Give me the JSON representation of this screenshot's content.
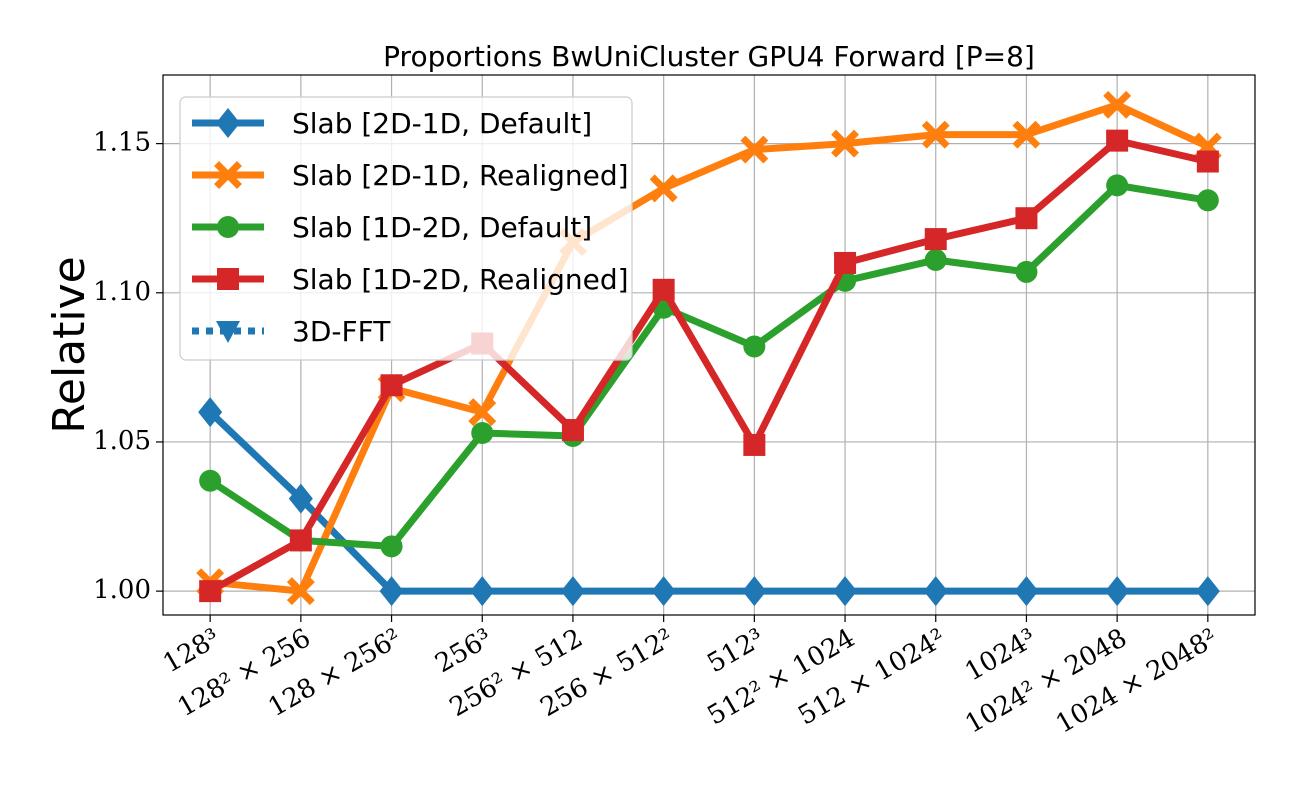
{
  "chart_data": {
    "type": "line",
    "title": "Proportions BwUniCluster GPU4 Forward [P=8]",
    "y_label": "Relative",
    "categories": [
      "128³",
      "128² × 256",
      "128 × 256²",
      "256³",
      "256² × 512",
      "256 × 512²",
      "512³",
      "512² × 1024",
      "512 × 1024²",
      "1024³",
      "1024² × 2048",
      "1024 × 2048²"
    ],
    "series": [
      {
        "name": "Slab [2D-1D, Default]",
        "color": "#1f77b4",
        "marker": "diamond",
        "linestyle": "solid",
        "values": [
          1.06,
          1.031,
          1.0,
          1.0,
          1.0,
          1.0,
          1.0,
          1.0,
          1.0,
          1.0,
          1.0,
          1.0
        ]
      },
      {
        "name": "Slab [2D-1D, Realigned]",
        "color": "#ff7f0e",
        "marker": "x",
        "linestyle": "solid",
        "values": [
          1.003,
          1.0,
          1.068,
          1.06,
          1.117,
          1.135,
          1.148,
          1.15,
          1.153,
          1.153,
          1.163,
          1.149
        ]
      },
      {
        "name": "Slab [1D-2D, Default]",
        "color": "#2ca02c",
        "marker": "circle",
        "linestyle": "solid",
        "values": [
          1.037,
          1.017,
          1.015,
          1.053,
          1.052,
          1.095,
          1.082,
          1.104,
          1.111,
          1.107,
          1.136,
          1.131
        ]
      },
      {
        "name": "Slab [1D-2D, Realigned]",
        "color": "#d62728",
        "marker": "square",
        "linestyle": "solid",
        "values": [
          1.0,
          1.017,
          1.069,
          1.083,
          1.054,
          1.101,
          1.049,
          1.11,
          1.118,
          1.125,
          1.151,
          1.144
        ]
      },
      {
        "name": "3D-FFT",
        "color": "#1f77b4",
        "marker": "triangle-down",
        "linestyle": "dotted",
        "values": [
          null,
          null,
          null,
          null,
          null,
          null,
          null,
          null,
          null,
          null,
          null,
          null
        ]
      }
    ],
    "ylim": [
      0.992,
      1.173
    ],
    "yticks": [
      {
        "value": 1.0,
        "label": "1.00"
      },
      1.05,
      {
        "value": 1.1,
        "label": "1.10"
      },
      1.15
    ],
    "grid": true,
    "legend": "upper left"
  }
}
